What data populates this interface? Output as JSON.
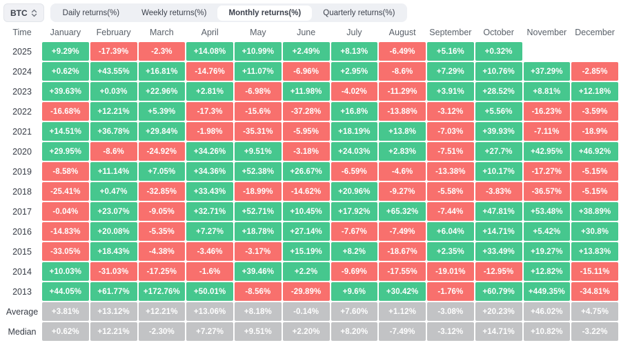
{
  "symbol_selector": {
    "label": "BTC"
  },
  "tabs": [
    {
      "id": "daily",
      "label": "Daily returns(%)",
      "active": false
    },
    {
      "id": "weekly",
      "label": "Weekly returns(%)",
      "active": false
    },
    {
      "id": "monthly",
      "label": "Monthly returns(%)",
      "active": true
    },
    {
      "id": "quarterly",
      "label": "Quarterly returns(%)",
      "active": false
    }
  ],
  "colors": {
    "positive": "#46c78e",
    "negative": "#f8706d",
    "neutral": "#c2c3c5"
  },
  "table": {
    "time_header": "Time",
    "months": [
      "January",
      "February",
      "March",
      "April",
      "May",
      "June",
      "July",
      "August",
      "September",
      "October",
      "November",
      "December"
    ],
    "rows": [
      {
        "time": "2025",
        "summary": false,
        "values": [
          "+9.29%",
          "-17.39%",
          "-2.3%",
          "+14.08%",
          "+10.99%",
          "+2.49%",
          "+8.13%",
          "-6.49%",
          "+5.16%",
          "+0.32%",
          "",
          ""
        ]
      },
      {
        "time": "2024",
        "summary": false,
        "values": [
          "+0.62%",
          "+43.55%",
          "+16.81%",
          "-14.76%",
          "+11.07%",
          "-6.96%",
          "+2.95%",
          "-8.6%",
          "+7.29%",
          "+10.76%",
          "+37.29%",
          "-2.85%"
        ]
      },
      {
        "time": "2023",
        "summary": false,
        "values": [
          "+39.63%",
          "+0.03%",
          "+22.96%",
          "+2.81%",
          "-6.98%",
          "+11.98%",
          "-4.02%",
          "-11.29%",
          "+3.91%",
          "+28.52%",
          "+8.81%",
          "+12.18%"
        ]
      },
      {
        "time": "2022",
        "summary": false,
        "values": [
          "-16.68%",
          "+12.21%",
          "+5.39%",
          "-17.3%",
          "-15.6%",
          "-37.28%",
          "+16.8%",
          "-13.88%",
          "-3.12%",
          "+5.56%",
          "-16.23%",
          "-3.59%"
        ]
      },
      {
        "time": "2021",
        "summary": false,
        "values": [
          "+14.51%",
          "+36.78%",
          "+29.84%",
          "-1.98%",
          "-35.31%",
          "-5.95%",
          "+18.19%",
          "+13.8%",
          "-7.03%",
          "+39.93%",
          "-7.11%",
          "-18.9%"
        ]
      },
      {
        "time": "2020",
        "summary": false,
        "values": [
          "+29.95%",
          "-8.6%",
          "-24.92%",
          "+34.26%",
          "+9.51%",
          "-3.18%",
          "+24.03%",
          "+2.83%",
          "-7.51%",
          "+27.7%",
          "+42.95%",
          "+46.92%"
        ]
      },
      {
        "time": "2019",
        "summary": false,
        "values": [
          "-8.58%",
          "+11.14%",
          "+7.05%",
          "+34.36%",
          "+52.38%",
          "+26.67%",
          "-6.59%",
          "-4.6%",
          "-13.38%",
          "+10.17%",
          "-17.27%",
          "-5.15%"
        ]
      },
      {
        "time": "2018",
        "summary": false,
        "values": [
          "-25.41%",
          "+0.47%",
          "-32.85%",
          "+33.43%",
          "-18.99%",
          "-14.62%",
          "+20.96%",
          "-9.27%",
          "-5.58%",
          "-3.83%",
          "-36.57%",
          "-5.15%"
        ]
      },
      {
        "time": "2017",
        "summary": false,
        "values": [
          "-0.04%",
          "+23.07%",
          "-9.05%",
          "+32.71%",
          "+52.71%",
          "+10.45%",
          "+17.92%",
          "+65.32%",
          "-7.44%",
          "+47.81%",
          "+53.48%",
          "+38.89%"
        ]
      },
      {
        "time": "2016",
        "summary": false,
        "values": [
          "-14.83%",
          "+20.08%",
          "-5.35%",
          "+7.27%",
          "+18.78%",
          "+27.14%",
          "-7.67%",
          "-7.49%",
          "+6.04%",
          "+14.71%",
          "+5.42%",
          "+30.8%"
        ]
      },
      {
        "time": "2015",
        "summary": false,
        "values": [
          "-33.05%",
          "+18.43%",
          "-4.38%",
          "-3.46%",
          "-3.17%",
          "+15.19%",
          "+8.2%",
          "-18.67%",
          "+2.35%",
          "+33.49%",
          "+19.27%",
          "+13.83%"
        ]
      },
      {
        "time": "2014",
        "summary": false,
        "values": [
          "+10.03%",
          "-31.03%",
          "-17.25%",
          "-1.6%",
          "+39.46%",
          "+2.2%",
          "-9.69%",
          "-17.55%",
          "-19.01%",
          "-12.95%",
          "+12.82%",
          "-15.11%"
        ]
      },
      {
        "time": "2013",
        "summary": false,
        "values": [
          "+44.05%",
          "+61.77%",
          "+172.76%",
          "+50.01%",
          "-8.56%",
          "-29.89%",
          "+9.6%",
          "+30.42%",
          "-1.76%",
          "+60.79%",
          "+449.35%",
          "-34.81%"
        ]
      },
      {
        "time": "Average",
        "summary": true,
        "values": [
          "+3.81%",
          "+13.12%",
          "+12.21%",
          "+13.06%",
          "+8.18%",
          "-0.14%",
          "+7.60%",
          "+1.12%",
          "-3.08%",
          "+20.23%",
          "+46.02%",
          "+4.75%"
        ]
      },
      {
        "time": "Median",
        "summary": true,
        "values": [
          "+0.62%",
          "+12.21%",
          "-2.30%",
          "+7.27%",
          "+9.51%",
          "+2.20%",
          "+8.20%",
          "-7.49%",
          "-3.12%",
          "+14.71%",
          "+10.82%",
          "-3.22%"
        ]
      }
    ]
  }
}
